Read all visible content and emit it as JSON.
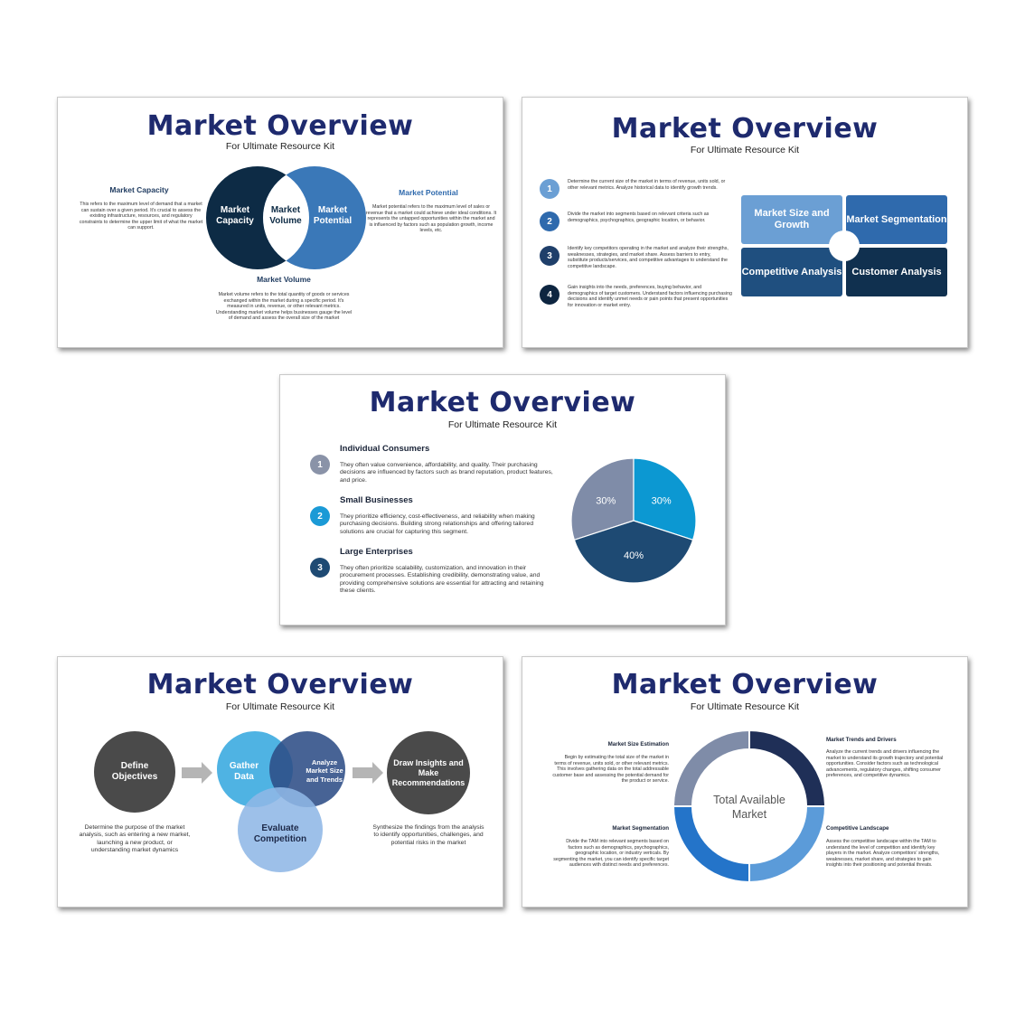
{
  "common": {
    "title": "Market Overview",
    "subtitle": "For Ultimate Resource Kit"
  },
  "slide1": {
    "capacity": {
      "heading": "Market Capacity",
      "text": "This refers to the maximum level of demand that a market can sustain over a given period. It's crucial to assess the existing infrastructure, resources, and regulatory constraints to determine the upper limit of what the market can support."
    },
    "potential": {
      "heading": "Market Potential",
      "text": "Market potential refers to the maximum level of sales or revenue that a market could achieve under ideal conditions. It represents the untapped opportunities within the market and is influenced by factors such as population growth, income levels, etc."
    },
    "volume": {
      "heading": "Market Volume",
      "text": "Market volume refers to the total quantity of goods or services exchanged within the market during a specific period. It's measured in units, revenue, or other relevant metrics. Understanding market volume helps businesses gauge the level of demand and assess the overall size of the market"
    },
    "venn": {
      "left": "Market Capacity",
      "middle": "Market Volume",
      "right": "Market Potential"
    },
    "colors": {
      "left": "#0d2b45",
      "right": "#3a78b8"
    }
  },
  "slide2": {
    "items": [
      {
        "num": "1",
        "text": "Determine the current size of the market in terms of revenue, units sold, or other relevant metrics. Analyze historical data to identify growth trends.",
        "color": "#6b9fd4"
      },
      {
        "num": "2",
        "text": "Divide the market into segments based on relevant criteria such as demographics, psychographics, geographic location, or behavior.",
        "color": "#2f6aad"
      },
      {
        "num": "3",
        "text": "Identify key competitors operating in the market and analyze their strengths, weaknesses, strategies, and market share. Assess barriers to entry, substitute products/services, and competitive advantages to understand the competitive landscape.",
        "color": "#1f3f6a"
      },
      {
        "num": "4",
        "text": "Gain insights into the needs, preferences, buying behavior, and demographics of target customers. Understand factors influencing purchasing decisions and identify unmet needs or pain points that present opportunities for innovation or market entry.",
        "color": "#0d2540"
      }
    ],
    "tiles": [
      {
        "label": "Market Size and Growth",
        "color": "#6b9fd4"
      },
      {
        "label": "Market Segmentation",
        "color": "#2f6aad"
      },
      {
        "label": "Competitive Analysis",
        "color": "#1f4f7f"
      },
      {
        "label": "Customer Analysis",
        "color": "#10304f"
      }
    ]
  },
  "slide3": {
    "items": [
      {
        "num": "1",
        "heading": "Individual Consumers",
        "text": "They often value convenience, affordability, and quality. Their purchasing decisions are influenced by factors such as brand reputation, product features, and price.",
        "color": "#8a93a8"
      },
      {
        "num": "2",
        "heading": "Small Businesses",
        "text": "They prioritize efficiency, cost-effectiveness, and reliability when making purchasing decisions. Building strong relationships and offering tailored solutions are crucial for capturing this segment.",
        "color": "#1b9ad6"
      },
      {
        "num": "3",
        "heading": "Large Enterprises",
        "text": "They often prioritize scalability, customization, and innovation in their procurement processes. Establishing credibility, demonstrating value, and providing comprehensive solutions are essential for attracting and retaining these clients.",
        "color": "#1e4a73"
      }
    ]
  },
  "slide4": {
    "define": "Define Objectives",
    "define_text": "Determine the purpose of the market analysis, such as entering a new market, launching a new product, or understanding market dynamics",
    "gather": "Gather Data",
    "analyze": "Analyze Market Size and Trends",
    "evaluate": "Evaluate Competition",
    "draw": "Draw Insights and Make Recommendations",
    "draw_text": "Synthesize the findings from the analysis to identify opportunities, challenges, and potential risks in the market"
  },
  "slide5": {
    "center": "Total Available Market",
    "size": {
      "heading": "Market Size Estimation",
      "text": "Begin by estimating the total size of the market in terms of revenue, units sold, or other relevant metrics. This involves gathering data on the total addressable customer base and assessing the potential demand for the product or service."
    },
    "seg": {
      "heading": "Market Segmentation",
      "text": "Divide the TAM into relevant segments based on factors such as demographics, psychographics, geographic location, or industry verticals. By segmenting the market, you can identify specific target audiences with distinct needs and preferences."
    },
    "trends": {
      "heading": "Market Trends and Drivers",
      "text": "Analyze the current trends and drivers influencing the market to understand its growth trajectory and potential opportunities. Consider factors such as technological advancements, regulatory changes, shifting consumer preferences, and competitive dynamics."
    },
    "comp": {
      "heading": "Competitive Landscape",
      "text": "Assess the competitive landscape within the TAM to understand the level of competition and identify key players in the market. Analyze competitors' strengths, weaknesses, market share, and strategies to gain insights into their positioning and potential threats."
    }
  },
  "chart_data": [
    {
      "type": "pie",
      "categories": [
        "Individual Consumers",
        "Small Businesses",
        "Large Enterprises"
      ],
      "values": [
        30,
        30,
        40
      ],
      "labels": [
        "30%",
        "30%",
        "40%"
      ],
      "colors": [
        "#7f8ca8",
        "#0c98d2",
        "#1e4a73"
      ]
    },
    {
      "type": "pie",
      "categories": [
        "Market Size Estimation",
        "Market Trends and Drivers",
        "Competitive Landscape",
        "Market Segmentation"
      ],
      "values": [
        25,
        25,
        25,
        25
      ],
      "colors": [
        "#7f8ca8",
        "#1f2f57",
        "#5b9bd9",
        "#2474c9"
      ]
    }
  ]
}
